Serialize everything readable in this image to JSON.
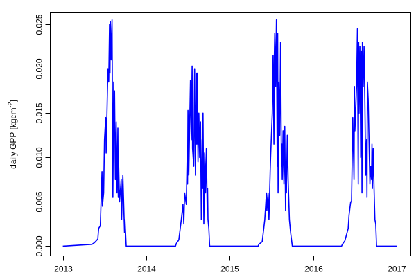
{
  "chart_data": {
    "type": "line",
    "title": "",
    "xlabel": "",
    "ylabel": "daily GPP [kgcm",
    "ylabel_superscript": "-2",
    "ylabel_close": "]",
    "xlim": [
      2012.85,
      2017.17
    ],
    "ylim": [
      -0.0011,
      0.0263
    ],
    "x_ticks": [
      2013,
      2014,
      2015,
      2016,
      2017
    ],
    "x_tick_labels": [
      "2013",
      "2014",
      "2015",
      "2016",
      "2017"
    ],
    "y_ticks": [
      0,
      0.005,
      0.01,
      0.015,
      0.02,
      0.025
    ],
    "y_tick_labels": [
      "0.000",
      "0.005",
      "0.010",
      "0.015",
      "0.020",
      "0.025"
    ],
    "grid": false,
    "series": [
      {
        "color": "#0000ff",
        "points": [
          [
            2013.0,
            0
          ],
          [
            2013.35,
            0.0002
          ],
          [
            2013.38,
            0.0004
          ],
          [
            2013.42,
            0.0008
          ],
          [
            2013.43,
            0.002
          ],
          [
            2013.45,
            0.0023
          ],
          [
            2013.47,
            0.0084
          ],
          [
            2013.475,
            0.0045
          ],
          [
            2013.49,
            0.006
          ],
          [
            2013.5,
            0.012
          ],
          [
            2013.515,
            0.0145
          ],
          [
            2013.52,
            0.0105
          ],
          [
            2013.54,
            0.02
          ],
          [
            2013.55,
            0.0185
          ],
          [
            2013.56,
            0.025
          ],
          [
            2013.565,
            0.0195
          ],
          [
            2013.57,
            0.0253
          ],
          [
            2013.58,
            0.021
          ],
          [
            2013.59,
            0.0255
          ],
          [
            2013.6,
            0.0055
          ],
          [
            2013.61,
            0.0185
          ],
          [
            2013.615,
            0.015
          ],
          [
            2013.62,
            0.0175
          ],
          [
            2013.63,
            0.0075
          ],
          [
            2013.64,
            0.014
          ],
          [
            2013.65,
            0.006
          ],
          [
            2013.66,
            0.0133
          ],
          [
            2013.665,
            0.0055
          ],
          [
            2013.67,
            0.009
          ],
          [
            2013.68,
            0.005
          ],
          [
            2013.7,
            0.0075
          ],
          [
            2013.705,
            0.003
          ],
          [
            2013.72,
            0.008
          ],
          [
            2013.74,
            0.0015
          ],
          [
            2013.745,
            0.003
          ],
          [
            2013.76,
            0
          ],
          [
            2014.35,
            0
          ],
          [
            2014.36,
            0.0003
          ],
          [
            2014.39,
            0.0007
          ],
          [
            2014.42,
            0.003
          ],
          [
            2014.44,
            0.0047
          ],
          [
            2014.45,
            0.0025
          ],
          [
            2014.46,
            0.006
          ],
          [
            2014.48,
            0.0047
          ],
          [
            2014.49,
            0.01
          ],
          [
            2014.495,
            0.007
          ],
          [
            2014.5,
            0.0153
          ],
          [
            2014.51,
            0.008
          ],
          [
            2014.53,
            0.0187
          ],
          [
            2014.54,
            0.012
          ],
          [
            2014.55,
            0.0203
          ],
          [
            2014.555,
            0.011
          ],
          [
            2014.57,
            0.009
          ],
          [
            2014.58,
            0.02
          ],
          [
            2014.59,
            0.008
          ],
          [
            2014.6,
            0.0195
          ],
          [
            2014.605,
            0.0115
          ],
          [
            2014.61,
            0.0195
          ],
          [
            2014.62,
            0.0095
          ],
          [
            2014.63,
            0.015
          ],
          [
            2014.64,
            0.01
          ],
          [
            2014.65,
            0.014
          ],
          [
            2014.66,
            0.003
          ],
          [
            2014.67,
            0.012
          ],
          [
            2014.675,
            0.0065
          ],
          [
            2014.68,
            0.015
          ],
          [
            2014.69,
            0.0025
          ],
          [
            2014.7,
            0.0105
          ],
          [
            2014.71,
            0.006
          ],
          [
            2014.72,
            0.011
          ],
          [
            2014.73,
            0.0045
          ],
          [
            2014.735,
            0.0065
          ],
          [
            2014.74,
            0.003
          ],
          [
            2014.75,
            0.002
          ],
          [
            2014.76,
            0
          ],
          [
            2015.34,
            0
          ],
          [
            2015.35,
            0.0002
          ],
          [
            2015.39,
            0.0005
          ],
          [
            2015.42,
            0.003
          ],
          [
            2015.44,
            0.006
          ],
          [
            2015.445,
            0.004
          ],
          [
            2015.46,
            0.006
          ],
          [
            2015.47,
            0.003
          ],
          [
            2015.485,
            0.0085
          ],
          [
            2015.49,
            0.01
          ],
          [
            2015.51,
            0.015
          ],
          [
            2015.52,
            0.0215
          ],
          [
            2015.53,
            0.0115
          ],
          [
            2015.535,
            0.0215
          ],
          [
            2015.54,
            0.024
          ],
          [
            2015.55,
            0.018
          ],
          [
            2015.56,
            0.0255
          ],
          [
            2015.57,
            0.009
          ],
          [
            2015.575,
            0.024
          ],
          [
            2015.58,
            0.006
          ],
          [
            2015.59,
            0.0185
          ],
          [
            2015.6,
            0.0125
          ],
          [
            2015.61,
            0.023
          ],
          [
            2015.62,
            0.009
          ],
          [
            2015.625,
            0.0115
          ],
          [
            2015.63,
            0.0075
          ],
          [
            2015.64,
            0.013
          ],
          [
            2015.65,
            0.007
          ],
          [
            2015.66,
            0.0135
          ],
          [
            2015.67,
            0.004
          ],
          [
            2015.675,
            0.008
          ],
          [
            2015.68,
            0.006
          ],
          [
            2015.69,
            0.0125
          ],
          [
            2015.7,
            0.0075
          ],
          [
            2015.715,
            0.003
          ],
          [
            2015.73,
            0.0015
          ],
          [
            2015.75,
            0
          ],
          [
            2016.34,
            0
          ],
          [
            2016.35,
            0.0002
          ],
          [
            2016.38,
            0.0006
          ],
          [
            2016.42,
            0.002
          ],
          [
            2016.43,
            0.0035
          ],
          [
            2016.45,
            0.005
          ],
          [
            2016.46,
            0.005
          ],
          [
            2016.47,
            0.011
          ],
          [
            2016.475,
            0.0145
          ],
          [
            2016.49,
            0.0075
          ],
          [
            2016.495,
            0.018
          ],
          [
            2016.5,
            0.013
          ],
          [
            2016.52,
            0.018
          ],
          [
            2016.53,
            0.0245
          ],
          [
            2016.54,
            0.007
          ],
          [
            2016.545,
            0.023
          ],
          [
            2016.55,
            0.015
          ],
          [
            2016.56,
            0.0225
          ],
          [
            2016.57,
            0.01
          ],
          [
            2016.58,
            0.022
          ],
          [
            2016.585,
            0.006
          ],
          [
            2016.59,
            0.023
          ],
          [
            2016.6,
            0.018
          ],
          [
            2016.61,
            0.0225
          ],
          [
            2016.62,
            0.016
          ],
          [
            2016.63,
            0.008
          ],
          [
            2016.64,
            0.012
          ],
          [
            2016.645,
            0.0055
          ],
          [
            2016.65,
            0.0185
          ],
          [
            2016.66,
            0.0165
          ],
          [
            2016.68,
            0.007
          ],
          [
            2016.69,
            0.009
          ],
          [
            2016.7,
            0.0075
          ],
          [
            2016.705,
            0.0115
          ],
          [
            2016.71,
            0.0065
          ],
          [
            2016.72,
            0.011
          ],
          [
            2016.73,
            0.0065
          ],
          [
            2016.74,
            0.003
          ],
          [
            2016.75,
            0.0025
          ],
          [
            2016.76,
            0
          ],
          [
            2017.0,
            0
          ]
        ]
      }
    ]
  }
}
